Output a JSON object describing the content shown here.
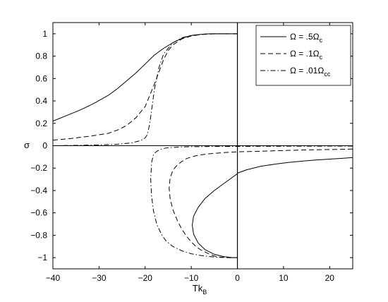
{
  "chart_data": {
    "type": "line",
    "title": "",
    "xlabel": "Tk",
    "xlabel_sub": "B",
    "ylabel": "σ",
    "xlim": [
      -40,
      25
    ],
    "ylim": [
      -1.1,
      1.1
    ],
    "xticks": [
      -40,
      -30,
      -20,
      -10,
      0,
      10,
      20
    ],
    "xtick_labels": [
      "−40",
      "−30",
      "−20",
      "−10",
      "0",
      "10",
      "20"
    ],
    "yticks": [
      -1,
      -0.8,
      -0.6,
      -0.4,
      -0.2,
      0,
      0.2,
      0.4,
      0.6,
      0.8,
      1
    ],
    "ytick_labels": [
      "−1",
      "−0.8",
      "−0.6",
      "−0.4",
      "−0.2",
      "0",
      "0.2",
      "0.4",
      "0.6",
      "0.8",
      "1"
    ],
    "grid": false,
    "legend_position": "top-right",
    "reference_lines": [
      {
        "orientation": "horizontal",
        "y": 0
      },
      {
        "orientation": "vertical",
        "x": 0
      }
    ],
    "series": [
      {
        "name": "Ω = .5Ω",
        "legend_text": "Ω = .5Ω",
        "legend_sub": "c",
        "line_style": "solid",
        "color": "#000000",
        "branches": [
          {
            "x": [
              -40,
              -37,
              -34,
              -31,
              -28,
              -26,
              -24,
              -22,
              -20,
              -18,
              -16,
              -14,
              -12,
              -10,
              -8,
              -6,
              -5,
              -4,
              -2,
              0
            ],
            "y": [
              0.22,
              0.27,
              0.32,
              0.38,
              0.45,
              0.51,
              0.58,
              0.65,
              0.73,
              0.81,
              0.87,
              0.92,
              0.96,
              0.985,
              0.995,
              1.0,
              1.0,
              1.0,
              1.0,
              1.0
            ]
          },
          {
            "x": [
              0,
              -1,
              -3,
              -5,
              -7,
              -8.5,
              -9.5,
              -9.8,
              -9.5,
              -8.5,
              -7,
              -5,
              -3,
              -1,
              0
            ],
            "y": [
              -0.25,
              -0.28,
              -0.34,
              -0.4,
              -0.47,
              -0.55,
              -0.63,
              -0.71,
              -0.79,
              -0.87,
              -0.93,
              -0.97,
              -0.99,
              -1.0,
              -1.0
            ]
          },
          {
            "x": [
              0,
              2,
              5,
              8,
              11,
              14,
              17,
              20,
              23,
              25
            ],
            "y": [
              -0.245,
              -0.215,
              -0.185,
              -0.165,
              -0.15,
              -0.138,
              -0.128,
              -0.12,
              -0.112,
              -0.106
            ]
          }
        ]
      },
      {
        "name": "Ω = .1Ω",
        "legend_text": "Ω = .1Ω",
        "legend_sub": "c",
        "line_style": "dashed",
        "color": "#000000",
        "branches": [
          {
            "x": [
              -40,
              -36,
              -32,
              -28,
              -26,
              -24,
              -22,
              -20,
              -18,
              -17,
              -16,
              -15,
              -14,
              -12,
              -10,
              -8,
              -6,
              -4,
              -2,
              0
            ],
            "y": [
              0.05,
              0.065,
              0.085,
              0.11,
              0.14,
              0.18,
              0.25,
              0.35,
              0.55,
              0.66,
              0.77,
              0.85,
              0.9,
              0.955,
              0.98,
              0.993,
              0.998,
              1.0,
              1.0,
              1.0
            ]
          },
          {
            "x": [
              25,
              20,
              15,
              10,
              5,
              0,
              -3,
              -6,
              -8,
              -9,
              -10,
              -11,
              -12,
              -13,
              -14,
              -14.6,
              -14.8,
              -14.6,
              -14,
              -13,
              -12,
              -11,
              -10,
              -9,
              -8,
              -7,
              -6,
              -5,
              -4,
              -2,
              0
            ],
            "y": [
              -0.03,
              -0.034,
              -0.038,
              -0.043,
              -0.049,
              -0.055,
              -0.062,
              -0.072,
              -0.082,
              -0.09,
              -0.1,
              -0.115,
              -0.14,
              -0.17,
              -0.22,
              -0.29,
              -0.38,
              -0.47,
              -0.57,
              -0.67,
              -0.75,
              -0.81,
              -0.86,
              -0.9,
              -0.93,
              -0.95,
              -0.97,
              -0.985,
              -0.995,
              -1.0,
              -1.0
            ]
          }
        ]
      },
      {
        "name": "Ω = .01Ω",
        "legend_text": "Ω = .01Ω",
        "legend_sub": "cc",
        "line_style": "dashdot",
        "color": "#000000",
        "branches": [
          {
            "x": [
              -40,
              -35,
              -30,
              -26,
              -23,
              -21,
              -20,
              -19.5,
              -19,
              -18.5,
              -18,
              -17,
              -16,
              -14,
              -12,
              -10,
              -8,
              -6,
              -4,
              -2,
              0
            ],
            "y": [
              0.0,
              0.003,
              0.007,
              0.013,
              0.025,
              0.045,
              0.07,
              0.1,
              0.2,
              0.35,
              0.5,
              0.7,
              0.82,
              0.92,
              0.965,
              0.985,
              0.995,
              1.0,
              1.0,
              1.0,
              1.0
            ]
          },
          {
            "x": [
              25,
              15,
              5,
              0,
              -5,
              -8,
              -10,
              -12,
              -14,
              -15.5,
              -16.5,
              -17.5,
              -18.2,
              -18.6,
              -18.8,
              -18.6,
              -18.2,
              -17.5,
              -16.5,
              -15.5,
              -14,
              -12,
              -10,
              -8,
              -6,
              -4,
              -2,
              0
            ],
            "y": [
              -0.003,
              -0.004,
              -0.005,
              -0.006,
              -0.007,
              -0.008,
              -0.009,
              -0.011,
              -0.015,
              -0.02,
              -0.03,
              -0.05,
              -0.08,
              -0.15,
              -0.3,
              -0.45,
              -0.58,
              -0.7,
              -0.79,
              -0.85,
              -0.9,
              -0.94,
              -0.965,
              -0.98,
              -0.99,
              -0.997,
              -1.0,
              -1.0
            ]
          }
        ]
      }
    ]
  }
}
